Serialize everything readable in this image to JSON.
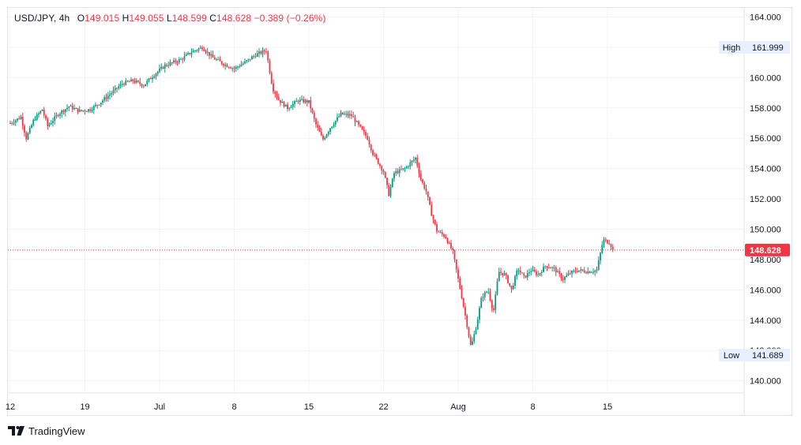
{
  "legend": {
    "symbol": "USD/JPY",
    "interval": "4h",
    "open_label": "O",
    "open": "149.015",
    "high_label": "H",
    "high": "149.055",
    "low_label": "L",
    "low": "148.599",
    "close_label": "C",
    "close": "148.628",
    "change": "−0.389 (−0.26%)"
  },
  "branding": {
    "logo_text": "TradingView"
  },
  "colors": {
    "up": "#089981",
    "down": "#f23645",
    "grid": "#f0f3fa",
    "axis_border": "#e0e3eb",
    "price_line": "#f23645",
    "badge_bg": "#e8f0fe"
  },
  "icons": {
    "logo": "tradingview-logo-icon"
  },
  "chart_data": {
    "type": "candlestick",
    "title": "USD/JPY, 4h",
    "ylim": [
      139.2,
      164.6
    ],
    "y_ticks": [
      140,
      142,
      144,
      146,
      148,
      150,
      152,
      154,
      156,
      158,
      160,
      162,
      164
    ],
    "y_tick_labels": [
      "140.000",
      "142.000",
      "144.000",
      "146.000",
      "148.000",
      "150.000",
      "152.000",
      "154.000",
      "156.000",
      "158.000",
      "160.000",
      "162.000",
      "164.000"
    ],
    "x_ticks": [
      {
        "label": "12",
        "day": 0
      },
      {
        "label": "19",
        "day": 7
      },
      {
        "label": "Jul",
        "day": 14
      },
      {
        "label": "8",
        "day": 21
      },
      {
        "label": "15",
        "day": 28
      },
      {
        "label": "22",
        "day": 35
      },
      {
        "label": "Aug",
        "day": 42
      },
      {
        "label": "8",
        "day": 49
      },
      {
        "label": "15",
        "day": 56
      }
    ],
    "last_price": "148.628",
    "high_marker": {
      "label": "High",
      "value": "161.999"
    },
    "low_marker": {
      "label": "Low",
      "value": "141.689"
    },
    "path": [
      [
        0,
        157.0
      ],
      [
        1,
        157.4
      ],
      [
        1.5,
        156.0
      ],
      [
        2.2,
        157.2
      ],
      [
        3,
        157.9
      ],
      [
        3.5,
        156.8
      ],
      [
        4.5,
        157.6
      ],
      [
        5.5,
        158.1
      ],
      [
        6.5,
        157.8
      ],
      [
        7.5,
        157.9
      ],
      [
        8.5,
        158.4
      ],
      [
        9.5,
        159.0
      ],
      [
        10.5,
        159.6
      ],
      [
        11.5,
        159.8
      ],
      [
        12.5,
        159.5
      ],
      [
        13.5,
        160.2
      ],
      [
        14.5,
        160.8
      ],
      [
        16,
        161.2
      ],
      [
        17,
        161.7
      ],
      [
        18,
        162.0
      ],
      [
        19,
        161.3
      ],
      [
        20,
        160.9
      ],
      [
        21,
        160.6
      ],
      [
        22,
        161.0
      ],
      [
        23,
        161.5
      ],
      [
        24,
        161.8
      ],
      [
        24.6,
        159.3
      ],
      [
        25.2,
        158.5
      ],
      [
        26,
        158.0
      ],
      [
        27,
        158.5
      ],
      [
        28,
        158.4
      ],
      [
        28.6,
        157.0
      ],
      [
        29.3,
        155.9
      ],
      [
        30,
        156.7
      ],
      [
        31,
        157.6
      ],
      [
        32,
        157.5
      ],
      [
        32.7,
        156.8
      ],
      [
        33.5,
        156.0
      ],
      [
        34,
        155.0
      ],
      [
        35,
        153.8
      ],
      [
        35.5,
        152.3
      ],
      [
        36,
        153.7
      ],
      [
        37,
        154.0
      ],
      [
        38,
        154.7
      ],
      [
        38.5,
        153.3
      ],
      [
        39,
        152.5
      ],
      [
        39.5,
        151.0
      ],
      [
        40,
        149.9
      ],
      [
        40.8,
        149.5
      ],
      [
        41.5,
        148.5
      ],
      [
        42,
        146.7
      ],
      [
        42.4,
        145.3
      ],
      [
        42.8,
        143.8
      ],
      [
        43.2,
        142.2
      ],
      [
        43.7,
        143.6
      ],
      [
        44.2,
        145.5
      ],
      [
        44.8,
        146.0
      ],
      [
        45.3,
        144.5
      ],
      [
        45.8,
        147.2
      ],
      [
        46.4,
        147.0
      ],
      [
        47,
        146.0
      ],
      [
        47.6,
        147.4
      ],
      [
        48.2,
        146.8
      ],
      [
        48.8,
        147.3
      ],
      [
        49.5,
        147.0
      ],
      [
        50.2,
        147.6
      ],
      [
        51,
        147.4
      ],
      [
        51.8,
        146.7
      ],
      [
        52.5,
        147.1
      ],
      [
        53.2,
        147.3
      ],
      [
        54.2,
        147.2
      ],
      [
        55,
        147.3
      ],
      [
        55.6,
        149.3
      ],
      [
        56.2,
        149.1
      ],
      [
        56.6,
        148.628
      ]
    ]
  }
}
